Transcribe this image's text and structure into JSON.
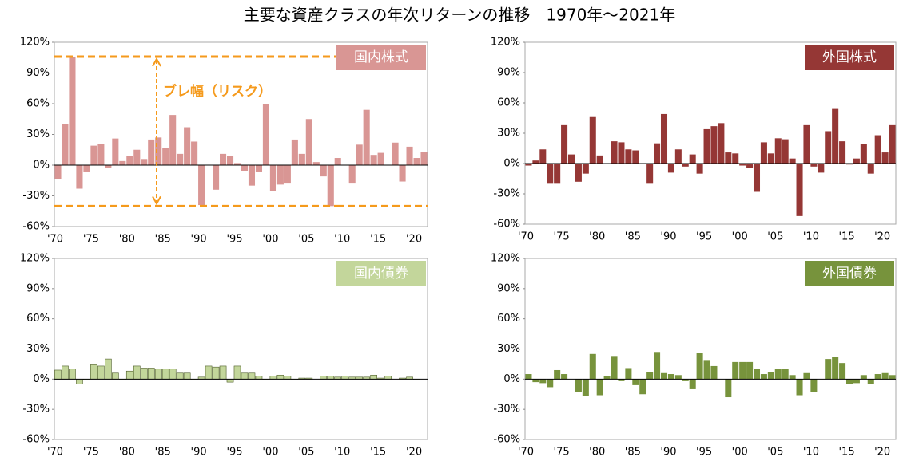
{
  "title": "主要な資産クラスの年次リターンの推移　1970年～2021年",
  "chart_data": [
    {
      "type": "bar",
      "label": "国内株式",
      "color": "#d99694",
      "categories": [
        "'70",
        null,
        null,
        null,
        null,
        "'75",
        null,
        null,
        null,
        null,
        "'80",
        null,
        null,
        null,
        null,
        "'85",
        null,
        null,
        null,
        null,
        "'90",
        null,
        null,
        null,
        null,
        "'95",
        null,
        null,
        null,
        null,
        "'00",
        null,
        null,
        null,
        null,
        "'05",
        null,
        null,
        null,
        null,
        "'10",
        null,
        null,
        null,
        null,
        "'15",
        null,
        null,
        null,
        null,
        "'20",
        null
      ],
      "values": [
        -14,
        40,
        106,
        -23,
        -7,
        19,
        21,
        -3,
        26,
        4,
        9,
        15,
        6,
        25,
        27,
        17,
        49,
        11,
        37,
        23,
        -39,
        0,
        -24,
        11,
        9,
        2,
        -6,
        -20,
        -7,
        60,
        -25,
        -19,
        -18,
        25,
        11,
        45,
        3,
        -11,
        -40,
        7,
        0,
        -18,
        20,
        54,
        10,
        12,
        0,
        22,
        -16,
        18,
        7,
        13
      ],
      "annotation": {
        "text": "ブレ幅（リスク）",
        "range": [
          106,
          -40
        ]
      },
      "ylim": [
        -60,
        120
      ],
      "yticks": [
        {
          "value": 120,
          "label": "120%"
        },
        {
          "value": 90,
          "label": "90%"
        },
        {
          "value": 60,
          "label": "60%"
        },
        {
          "value": 30,
          "label": "30%"
        },
        {
          "value": 0,
          "label": "0%"
        },
        {
          "value": -30,
          "label": "-30%"
        },
        {
          "value": -60,
          "label": "-60%"
        }
      ]
    },
    {
      "type": "bar",
      "label": "外国株式",
      "color": "#953735",
      "categories": [
        "'70",
        null,
        null,
        null,
        null,
        "'75",
        null,
        null,
        null,
        null,
        "'80",
        null,
        null,
        null,
        null,
        "'85",
        null,
        null,
        null,
        null,
        "'90",
        null,
        null,
        null,
        null,
        "'95",
        null,
        null,
        null,
        null,
        "'00",
        null,
        null,
        null,
        null,
        "'05",
        null,
        null,
        null,
        null,
        "'10",
        null,
        null,
        null,
        null,
        "'15",
        null,
        null,
        null,
        null,
        "'20",
        null
      ],
      "values": [
        -2,
        3,
        14,
        -20,
        -20,
        38,
        9,
        -18,
        -10,
        46,
        8,
        0,
        22,
        21,
        14,
        13,
        0,
        -20,
        20,
        49,
        -9,
        14,
        -3,
        9,
        -10,
        34,
        37,
        40,
        11,
        10,
        -2,
        -4,
        -28,
        21,
        10,
        25,
        24,
        5,
        -52,
        38,
        -3,
        -9,
        32,
        54,
        22,
        -1,
        5,
        19,
        -10,
        28,
        11,
        38
      ],
      "ylim": [
        -60,
        120
      ],
      "yticks": [
        {
          "value": 120,
          "label": "120%"
        },
        {
          "value": 90,
          "label": "90%"
        },
        {
          "value": 60,
          "label": "60%"
        },
        {
          "value": 30,
          "label": "30%"
        },
        {
          "value": 0,
          "label": "0%"
        },
        {
          "value": -30,
          "label": "-30%"
        },
        {
          "value": -60,
          "label": "-60%"
        }
      ]
    },
    {
      "type": "bar",
      "label": "国内債券",
      "color": "#c3d69b",
      "categories": [
        "'70",
        null,
        null,
        null,
        null,
        "'75",
        null,
        null,
        null,
        null,
        "'80",
        null,
        null,
        null,
        null,
        "'85",
        null,
        null,
        null,
        null,
        "'90",
        null,
        null,
        null,
        null,
        "'95",
        null,
        null,
        null,
        null,
        "'00",
        null,
        null,
        null,
        null,
        "'05",
        null,
        null,
        null,
        null,
        "'10",
        null,
        null,
        null,
        null,
        "'15",
        null,
        null,
        null,
        null,
        "'20",
        null
      ],
      "values": [
        9,
        13,
        10,
        -5,
        -1,
        15,
        13,
        20,
        6,
        -1,
        8,
        13,
        11,
        11,
        10,
        10,
        10,
        6,
        6,
        -1,
        2,
        13,
        12,
        13,
        -3,
        13,
        6,
        6,
        3,
        -1,
        3,
        4,
        3,
        -1,
        1,
        1,
        0,
        3,
        3,
        2,
        3,
        2,
        2,
        2,
        4,
        1,
        3,
        0,
        1,
        2,
        -1,
        0
      ],
      "bar_color": "#6b7a3a",
      "ylim": [
        -60,
        120
      ],
      "yticks": [
        {
          "value": 120,
          "label": "120%"
        },
        {
          "value": 90,
          "label": "90%"
        },
        {
          "value": 60,
          "label": "60%"
        },
        {
          "value": 30,
          "label": "30%"
        },
        {
          "value": 0,
          "label": "0%"
        },
        {
          "value": -30,
          "label": "-30%"
        },
        {
          "value": -60,
          "label": "-60%"
        }
      ]
    },
    {
      "type": "bar",
      "label": "外国債券",
      "color": "#77933c",
      "categories": [
        "'70",
        null,
        null,
        null,
        null,
        "'75",
        null,
        null,
        null,
        null,
        "'80",
        null,
        null,
        null,
        null,
        "'85",
        null,
        null,
        null,
        null,
        "'90",
        null,
        null,
        null,
        null,
        "'95",
        null,
        null,
        null,
        null,
        "'00",
        null,
        null,
        null,
        null,
        "'05",
        null,
        null,
        null,
        null,
        "'10",
        null,
        null,
        null,
        null,
        "'15",
        null,
        null,
        null,
        null,
        "'20",
        null
      ],
      "values": [
        5,
        -3,
        -4,
        -8,
        9,
        5,
        0,
        -13,
        -17,
        25,
        -16,
        3,
        23,
        -2,
        11,
        -6,
        -15,
        7,
        27,
        6,
        5,
        4,
        -2,
        -10,
        26,
        19,
        13,
        0,
        -18,
        17,
        17,
        17,
        10,
        5,
        7,
        10,
        10,
        4,
        -16,
        6,
        -13,
        0,
        20,
        22,
        16,
        -5,
        -4,
        4,
        -5,
        5,
        6,
        4
      ],
      "ylim": [
        -60,
        120
      ],
      "yticks": [
        {
          "value": 120,
          "label": "120%"
        },
        {
          "value": 90,
          "label": "90%"
        },
        {
          "value": 60,
          "label": "60%"
        },
        {
          "value": 30,
          "label": "30%"
        },
        {
          "value": 0,
          "label": "0%"
        },
        {
          "value": -30,
          "label": "-30%"
        },
        {
          "value": -60,
          "label": "-60%"
        }
      ]
    }
  ]
}
